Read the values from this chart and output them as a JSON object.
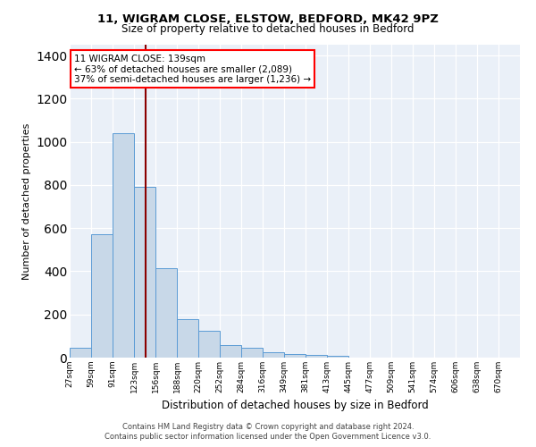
{
  "title_line1": "11, WIGRAM CLOSE, ELSTOW, BEDFORD, MK42 9PZ",
  "title_line2": "Size of property relative to detached houses in Bedford",
  "xlabel": "Distribution of detached houses by size in Bedford",
  "ylabel": "Number of detached properties",
  "categories": [
    "27sqm",
    "59sqm",
    "91sqm",
    "123sqm",
    "156sqm",
    "188sqm",
    "220sqm",
    "252sqm",
    "284sqm",
    "316sqm",
    "349sqm",
    "381sqm",
    "413sqm",
    "445sqm",
    "477sqm",
    "509sqm",
    "541sqm",
    "574sqm",
    "606sqm",
    "638sqm",
    "670sqm"
  ],
  "bin_heights": [
    47,
    570,
    1040,
    790,
    415,
    180,
    125,
    60,
    47,
    25,
    18,
    12,
    10,
    0,
    0,
    0,
    0,
    0,
    0,
    0
  ],
  "bar_color": "#c8d8e8",
  "bar_edge_color": "#5b9bd5",
  "red_line_x": 3.55,
  "property_size": "139sqm",
  "pct_smaller": "63%",
  "n_smaller": "2,089",
  "pct_larger": "37%",
  "n_larger": "1,236",
  "ylim": [
    0,
    1450
  ],
  "yticks": [
    0,
    200,
    400,
    600,
    800,
    1000,
    1200,
    1400
  ],
  "plot_bg_color": "#eaf0f8",
  "footer_line1": "Contains HM Land Registry data © Crown copyright and database right 2024.",
  "footer_line2": "Contains public sector information licensed under the Open Government Licence v3.0."
}
